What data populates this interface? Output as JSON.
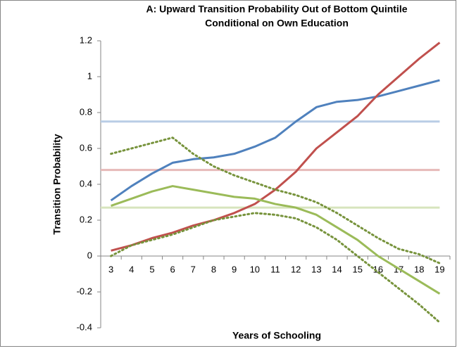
{
  "chart_data": {
    "type": "line",
    "title": [
      "A: Upward Transition Probability Out of Bottom Quintile",
      "Conditional on Own Education"
    ],
    "x_label": "Years of Schooling",
    "y_label": "Transition Probability",
    "categories": [
      3,
      4,
      5,
      6,
      7,
      8,
      9,
      10,
      11,
      12,
      13,
      14,
      15,
      16,
      17,
      18,
      19
    ],
    "ylim": [
      -0.4,
      1.2
    ],
    "yticks": [
      -0.4,
      -0.2,
      0,
      0.2,
      0.4,
      0.6,
      0.8,
      1,
      1.2
    ],
    "grid": false,
    "reference_lines": [
      {
        "value": 0.75,
        "color": "#b9cde5"
      },
      {
        "value": 0.48,
        "color": "#e6b9b8"
      },
      {
        "value": 0.27,
        "color": "#d7e4bd"
      }
    ],
    "series": [
      {
        "color": "#4f81bd",
        "dash": false,
        "values": [
          0.31,
          0.39,
          0.46,
          0.52,
          0.54,
          0.55,
          0.57,
          0.61,
          0.66,
          0.75,
          0.83,
          0.86,
          0.87,
          0.89,
          0.92,
          0.95,
          0.98
        ]
      },
      {
        "color": "#c0504d",
        "dash": false,
        "values": [
          0.03,
          0.06,
          0.1,
          0.13,
          0.17,
          0.2,
          0.24,
          0.29,
          0.37,
          0.47,
          0.6,
          0.69,
          0.78,
          0.9,
          1.0,
          1.1,
          1.19
        ]
      },
      {
        "color": "#77933c",
        "dash": true,
        "values": [
          0.57,
          0.6,
          0.63,
          0.66,
          0.57,
          0.5,
          0.45,
          0.41,
          0.37,
          0.34,
          0.3,
          0.24,
          0.17,
          0.1,
          0.04,
          0.01,
          -0.04
        ]
      },
      {
        "color": "#77933c",
        "dash": true,
        "values": [
          0.0,
          0.06,
          0.09,
          0.12,
          0.16,
          0.2,
          0.22,
          0.24,
          0.23,
          0.21,
          0.16,
          0.09,
          0.0,
          -0.09,
          -0.18,
          -0.27,
          -0.37
        ]
      },
      {
        "color": "#9bbb59",
        "dash": false,
        "values": [
          0.28,
          0.32,
          0.36,
          0.39,
          0.37,
          0.35,
          0.33,
          0.32,
          0.29,
          0.27,
          0.23,
          0.16,
          0.09,
          0.0,
          -0.07,
          -0.14,
          -0.21
        ]
      }
    ]
  }
}
